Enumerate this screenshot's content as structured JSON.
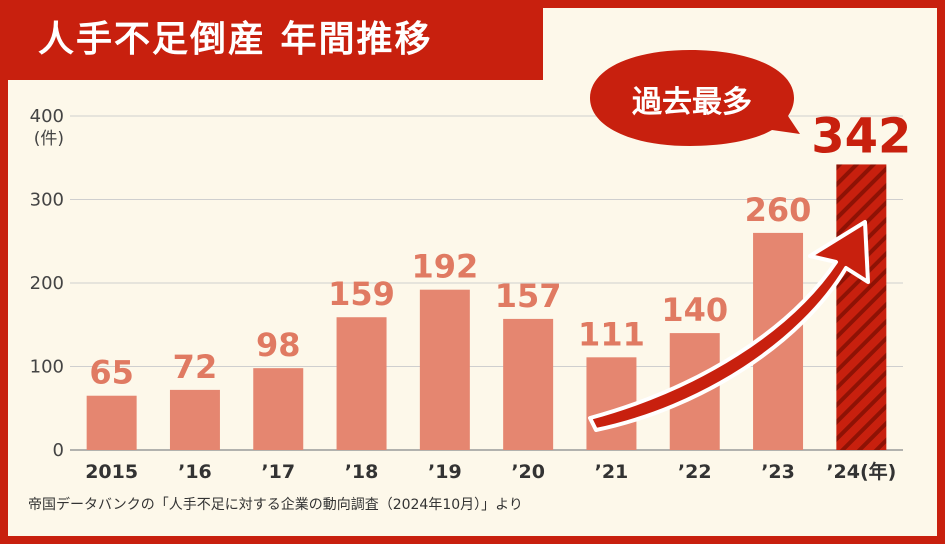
{
  "title": "人手不足倒産 年間推移",
  "callout": "過去最多",
  "source": "帝国データバンクの「人手不足に対する企業の動向調査（2024年10月）」より",
  "colors": {
    "accent": "#c8200e",
    "bar": "#e58670",
    "label": "#e07a62",
    "background": "#fdf8ea",
    "highlight": "#c8200e"
  },
  "chart_data": {
    "type": "bar",
    "title": "人手不足倒産 年間推移",
    "ylabel": "(件)",
    "ylim": [
      0,
      400
    ],
    "yticks": [
      0,
      100,
      200,
      300,
      400
    ],
    "categories": [
      "2015",
      "’16",
      "’17",
      "’18",
      "’19",
      "’20",
      "’21",
      "’22",
      "’23",
      "’24(年)"
    ],
    "values": [
      65,
      72,
      98,
      159,
      192,
      157,
      111,
      140,
      260,
      342
    ],
    "highlight_index": 9,
    "annotation": "過去最多"
  }
}
